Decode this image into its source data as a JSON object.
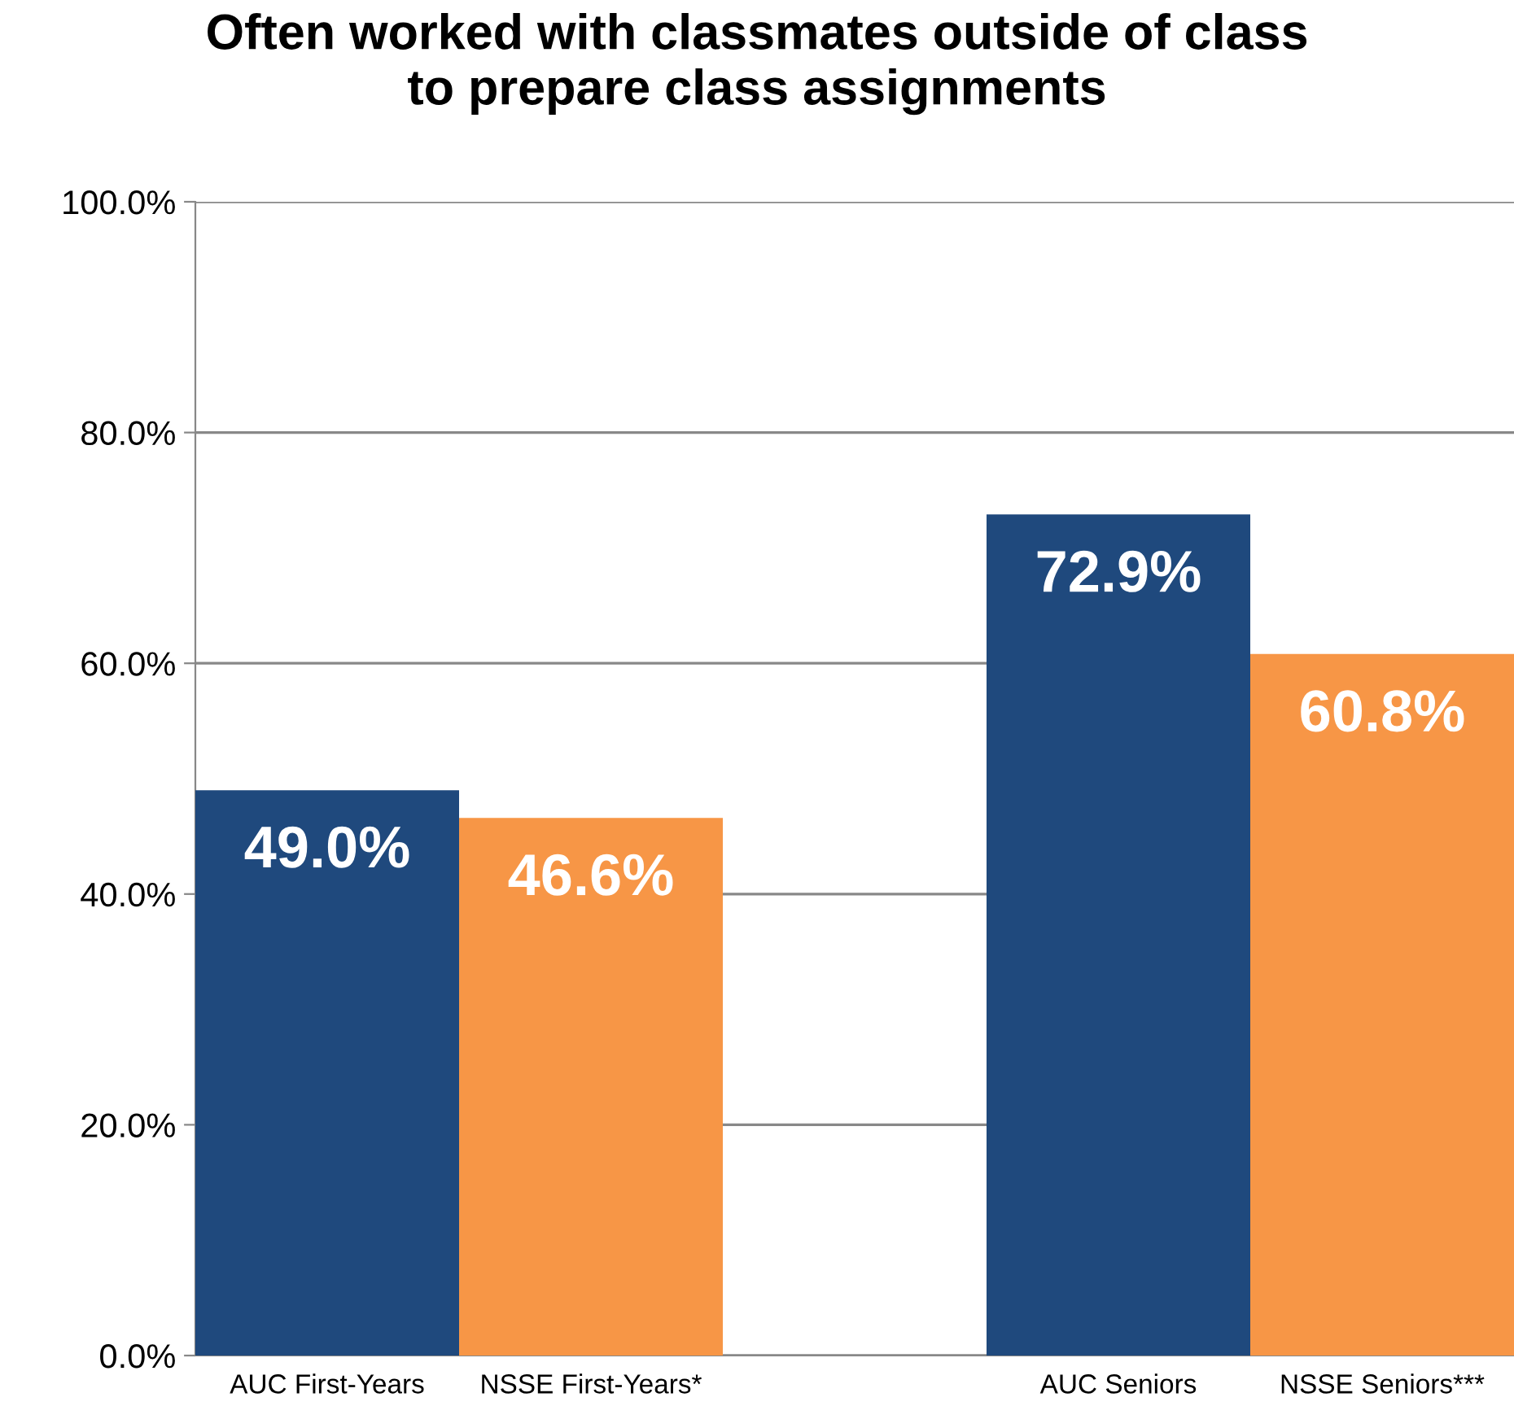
{
  "chart_data": {
    "type": "bar",
    "title": "Often worked with classmates outside of class\nto prepare class assignments",
    "categories": [
      "AUC First-Years",
      "NSSE First-Years*",
      null,
      "AUC Seniors",
      "NSSE Seniors***"
    ],
    "values": [
      49.0,
      46.6,
      null,
      72.9,
      60.8
    ],
    "colors": [
      "#1f497d",
      "#f79646",
      null,
      "#1f497d",
      "#f79646"
    ],
    "value_labels": [
      "49.0%",
      "46.6%",
      null,
      "72.9%",
      "60.8%"
    ],
    "ylim": [
      0,
      100
    ],
    "yticks": [
      {
        "value": 0,
        "label": "0.0%"
      },
      {
        "value": 20,
        "label": "20.0%"
      },
      {
        "value": 40,
        "label": "40.0%"
      },
      {
        "value": 60,
        "label": "60.0%"
      },
      {
        "value": 80,
        "label": "80.0%"
      },
      {
        "value": 100,
        "label": "100.0%"
      }
    ],
    "grid": "y"
  }
}
